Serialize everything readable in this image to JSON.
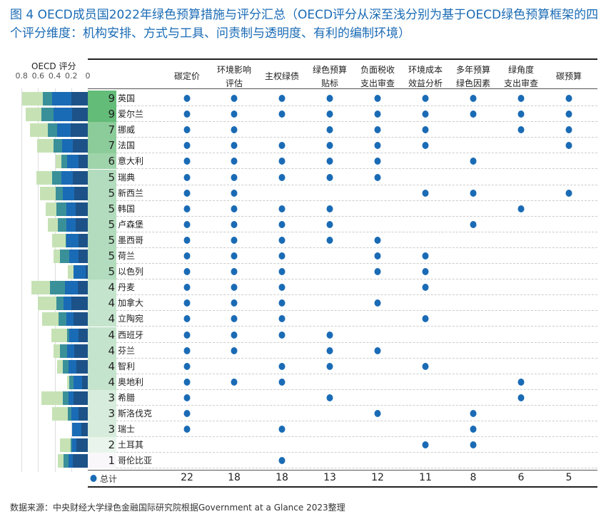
{
  "title": "图 4 OECD成员国2022年绿色预算措施与评分汇总（OECD评分从深至浅分别为基于OECD绿色预算框架的四个评分维度：机构安排、方式与工具、问责制与透明度、有利的编制环境）",
  "chart_data": [
    {
      "type": "bar",
      "orientation": "horizontal-stacked",
      "title": "OECD 评分",
      "xlim": [
        0,
        0.8
      ],
      "ticks": [
        "0.8",
        "0.6",
        "0.4",
        "0.2",
        "0"
      ],
      "direction": "right-to-left",
      "grid": true,
      "segment_colors": [
        "#1d5288",
        "#1a6bb5",
        "#3a9099",
        "#c6e2b5"
      ],
      "categories": [
        "英国",
        "爱尔兰",
        "挪威",
        "法国",
        "意大利",
        "瑞典",
        "新西兰",
        "韩国",
        "卢森堡",
        "墨西哥",
        "荷兰",
        "以色列",
        "丹麦",
        "加拿大",
        "立陶宛",
        "西班牙",
        "芬兰",
        "智利",
        "奥地利",
        "希腊",
        "斯洛伐克",
        "瑞士",
        "土耳其",
        "哥伦比亚"
      ],
      "values": [
        [
          0.2,
          0.23,
          0.11,
          0.25
        ],
        [
          0.19,
          0.22,
          0.15,
          0.19
        ],
        [
          0.21,
          0.16,
          0.11,
          0.22
        ],
        [
          0.18,
          0.13,
          0.1,
          0.2
        ],
        [
          0.11,
          0.14,
          0.07,
          0.07
        ],
        [
          0.18,
          0.14,
          0.11,
          0.19
        ],
        [
          0.16,
          0.14,
          0.09,
          0.19
        ],
        [
          0.15,
          0.11,
          0.12,
          0.13
        ],
        [
          0.15,
          0.11,
          0.1,
          0.12
        ],
        [
          0.11,
          0.15,
          0.01,
          0.16
        ],
        [
          0.11,
          0.11,
          0.12,
          0.07
        ],
        [
          0.03,
          0.14,
          0,
          0.07
        ],
        [
          0.12,
          0.16,
          0.18,
          0.22
        ],
        [
          0.2,
          0.09,
          0.09,
          0.22
        ],
        [
          0.17,
          0.09,
          0.09,
          0.2
        ],
        [
          0.11,
          0.11,
          0.03,
          0.19
        ],
        [
          0.16,
          0.09,
          0.09,
          0.07
        ],
        [
          0.14,
          0.09,
          0.07,
          0.07
        ],
        [
          0.07,
          0.1,
          0.05,
          0.03
        ],
        [
          0.17,
          0.06,
          0.07,
          0.26
        ],
        [
          0.11,
          0.09,
          0.04,
          0.19
        ],
        [
          0.08,
          0.11,
          0,
          0
        ],
        [
          0.14,
          0.05,
          0.02,
          0.13
        ],
        [
          0.18,
          0.05,
          0.06,
          0.07
        ]
      ]
    },
    {
      "type": "table",
      "columns": [
        "碳定价",
        "环境影响\n评估",
        "主权绿债",
        "绿色预算\n贴标",
        "负面税收\n支出审查",
        "环境成本\n效益分析",
        "多年预算\n绿色因素",
        "绿角度\n支出审查",
        "碳预算"
      ],
      "scores": [
        9,
        9,
        7,
        7,
        6,
        5,
        5,
        5,
        5,
        5,
        5,
        5,
        4,
        4,
        4,
        4,
        4,
        4,
        4,
        3,
        3,
        3,
        2,
        1
      ],
      "score_colors": {
        "9": "#63bc78",
        "7": "#8ccc9a",
        "6": "#9fd4ab",
        "5": "#b2dcbd",
        "4": "#c5e4cd",
        "3": "#d7ecdc",
        "2": "#e9f5ec",
        "1": "#faf7fb"
      },
      "matrix": [
        "111111111",
        "111111111",
        "110111011",
        "111111001",
        "111110100",
        "111110000",
        "110001101",
        "111100010",
        "111100100",
        "111110000",
        "111011000",
        "111011000",
        "111001000",
        "111010000",
        "111001000",
        "111100000",
        "110110000",
        "101101000",
        "111000010",
        "100100010",
        "100010100",
        "101000100",
        "000001100",
        "001000000"
      ],
      "total_label": "总计",
      "totals": [
        "22",
        "18",
        "18",
        "13",
        "12",
        "11",
        "8",
        "6",
        "5"
      ],
      "dot_color": "#1a6bb5"
    }
  ],
  "source": "数据来源：中央财经大学绿色金融国际研究院根据Government at a Glance 2023整理"
}
